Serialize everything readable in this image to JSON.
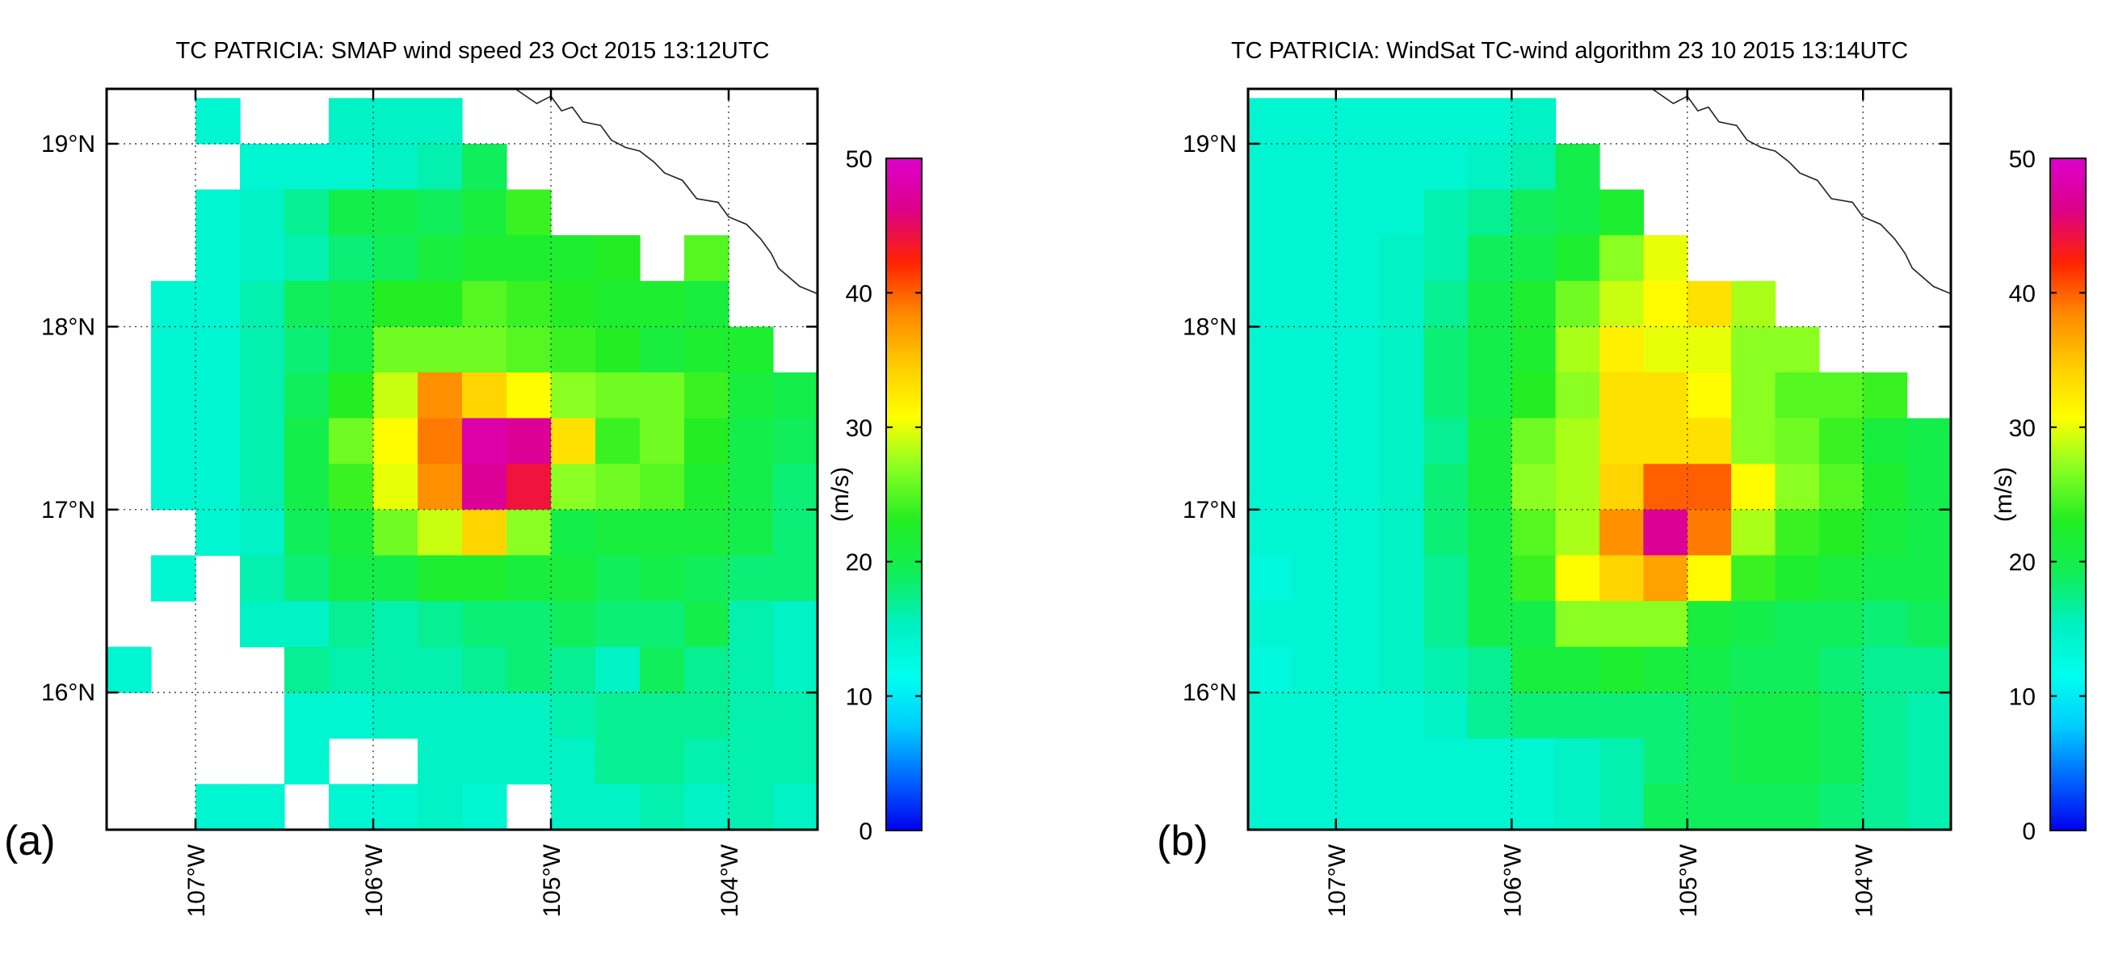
{
  "figure": {
    "colorbar": {
      "label": "(m/s)",
      "min": 0,
      "max": 50,
      "ticks": [
        0,
        10,
        20,
        30,
        40,
        50
      ],
      "stops": [
        "#0000ee",
        "#0066ff",
        "#00ccff",
        "#00ffee",
        "#00f0c0",
        "#11ee55",
        "#22ee22",
        "#88ff22",
        "#ffff00",
        "#ffcc00",
        "#ff8800",
        "#ff2200",
        "#dd0088",
        "#dd00cc"
      ]
    }
  },
  "chart_data": [
    {
      "type": "heatmap",
      "panel_label": "(a)",
      "title": "TC PATRICIA: SMAP wind speed 23 Oct 2015 13:12UTC",
      "units": "m/s",
      "xlim": [
        -107.5,
        -103.5
      ],
      "ylim": [
        15.25,
        19.3
      ],
      "grid_step_deg": 0.25,
      "x_ticks": [
        {
          "value": -107,
          "label": "107°W"
        },
        {
          "value": -106,
          "label": "106°W"
        },
        {
          "value": -105,
          "label": "105°W"
        },
        {
          "value": -104,
          "label": "104°W"
        }
      ],
      "y_ticks": [
        {
          "value": 16,
          "label": "16°N"
        },
        {
          "value": 17,
          "label": "17°N"
        },
        {
          "value": 18,
          "label": "18°N"
        },
        {
          "value": 19,
          "label": "19°N"
        }
      ],
      "rows_top_lat": 19.25,
      "cells_from_west_107.5": [
        [
          null,
          null,
          14,
          null,
          null,
          15,
          15,
          15,
          null,
          null,
          null,
          null,
          null,
          null,
          null,
          null
        ],
        [
          null,
          null,
          null,
          14,
          14,
          14,
          15,
          16,
          19,
          null,
          null,
          null,
          null,
          null,
          null,
          null
        ],
        [
          null,
          null,
          14,
          15,
          17,
          20,
          20,
          19,
          21,
          24,
          null,
          null,
          null,
          null,
          null,
          null
        ],
        [
          null,
          null,
          14,
          15,
          16,
          18,
          19,
          21,
          22,
          22,
          22,
          23,
          null,
          25,
          null,
          null
        ],
        [
          null,
          14,
          14,
          16,
          19,
          20,
          23,
          23,
          25,
          24,
          23,
          22,
          22,
          21,
          null,
          null
        ],
        [
          null,
          14,
          14,
          16,
          18,
          20,
          26,
          26,
          26,
          25,
          24,
          23,
          21,
          22,
          22,
          null
        ],
        [
          null,
          14,
          14,
          16,
          19,
          23,
          29,
          38,
          34,
          31,
          27,
          26,
          26,
          24,
          21,
          20
        ],
        [
          null,
          14,
          14,
          16,
          20,
          26,
          31,
          39,
          48,
          47,
          33,
          24,
          26,
          23,
          20,
          19
        ],
        [
          null,
          14,
          14,
          16,
          20,
          24,
          30,
          38,
          47,
          44,
          27,
          26,
          25,
          22,
          20,
          18
        ],
        [
          null,
          null,
          14,
          15,
          19,
          21,
          26,
          29,
          34,
          27,
          20,
          21,
          21,
          21,
          20,
          18
        ],
        [
          null,
          14,
          null,
          16,
          18,
          20,
          20,
          22,
          22,
          21,
          21,
          19,
          20,
          19,
          18,
          18
        ],
        [
          null,
          null,
          null,
          15,
          15,
          17,
          16,
          17,
          18,
          18,
          19,
          18,
          18,
          20,
          16,
          15
        ],
        [
          14,
          null,
          null,
          null,
          17,
          16,
          16,
          16,
          17,
          18,
          17,
          15,
          19,
          17,
          16,
          15
        ],
        [
          null,
          null,
          null,
          null,
          14,
          14,
          15,
          15,
          15,
          15,
          16,
          17,
          17,
          17,
          16,
          16
        ],
        [
          null,
          null,
          null,
          null,
          14,
          null,
          null,
          15,
          15,
          15,
          15,
          17,
          17,
          16,
          16,
          16
        ],
        [
          null,
          null,
          14,
          14,
          null,
          14,
          14,
          15,
          14,
          null,
          15,
          15,
          16,
          15,
          16,
          15
        ]
      ],
      "coastline": "Mexico coast near 105°W, 19°N (top right)"
    },
    {
      "type": "heatmap",
      "panel_label": "(b)",
      "title": "TC PATRICIA: WindSat TC-wind algorithm 23 10 2015 13:14UTC",
      "units": "m/s",
      "xlim": [
        -107.5,
        -103.5
      ],
      "ylim": [
        15.25,
        19.3
      ],
      "grid_step_deg": 0.25,
      "x_ticks": [
        {
          "value": -107,
          "label": "107°W"
        },
        {
          "value": -106,
          "label": "106°W"
        },
        {
          "value": -105,
          "label": "105°W"
        },
        {
          "value": -104,
          "label": "104°W"
        }
      ],
      "y_ticks": [
        {
          "value": 16,
          "label": "16°N"
        },
        {
          "value": 17,
          "label": "17°N"
        },
        {
          "value": 18,
          "label": "18°N"
        },
        {
          "value": 19,
          "label": "19°N"
        }
      ],
      "rows_top_lat": 19.25,
      "cells_from_west_107.5": [
        [
          14,
          14,
          14,
          14,
          14,
          14,
          15,
          null,
          null,
          null,
          null,
          null,
          null,
          null,
          null,
          null
        ],
        [
          14,
          14,
          14,
          14,
          14,
          15,
          16,
          20,
          null,
          null,
          null,
          null,
          null,
          null,
          null,
          null
        ],
        [
          14,
          14,
          14,
          14,
          16,
          17,
          19,
          20,
          22,
          null,
          null,
          null,
          null,
          null,
          null,
          null
        ],
        [
          14,
          14,
          14,
          15,
          16,
          19,
          20,
          22,
          27,
          30,
          null,
          null,
          null,
          null,
          null,
          null
        ],
        [
          14,
          14,
          14,
          15,
          17,
          20,
          22,
          26,
          29,
          31,
          33,
          28,
          null,
          null,
          null,
          null
        ],
        [
          14,
          14,
          14,
          15,
          18,
          20,
          22,
          28,
          32,
          30,
          30,
          27,
          27,
          null,
          null,
          null
        ],
        [
          14,
          14,
          14,
          15,
          18,
          20,
          23,
          27,
          33,
          33,
          31,
          27,
          25,
          25,
          24,
          null
        ],
        [
          14,
          14,
          14,
          15,
          17,
          21,
          26,
          28,
          33,
          33,
          33,
          27,
          26,
          24,
          21,
          20
        ],
        [
          14,
          14,
          14,
          15,
          18,
          21,
          27,
          28,
          34,
          40,
          40,
          31,
          27,
          25,
          22,
          20
        ],
        [
          14,
          14,
          14,
          15,
          18,
          20,
          25,
          28,
          38,
          47,
          39,
          28,
          24,
          23,
          21,
          20
        ],
        [
          13,
          14,
          14,
          15,
          17,
          20,
          24,
          31,
          34,
          37,
          31,
          24,
          22,
          21,
          20,
          20
        ],
        [
          14,
          14,
          14,
          15,
          17,
          20,
          20,
          27,
          27,
          27,
          21,
          20,
          19,
          19,
          18,
          19
        ],
        [
          13,
          14,
          14,
          15,
          16,
          17,
          21,
          21,
          22,
          21,
          20,
          19,
          19,
          18,
          17,
          17
        ],
        [
          14,
          14,
          14,
          14,
          15,
          17,
          18,
          18,
          18,
          18,
          19,
          20,
          20,
          19,
          17,
          16
        ],
        [
          14,
          14,
          14,
          14,
          14,
          14,
          14,
          15,
          16,
          18,
          19,
          20,
          20,
          19,
          17,
          16
        ],
        [
          14,
          14,
          14,
          14,
          14,
          14,
          14,
          15,
          16,
          19,
          19,
          19,
          19,
          18,
          17,
          16
        ]
      ],
      "coastline": "Mexico coast near 105°W, 19°N (top right)"
    }
  ]
}
